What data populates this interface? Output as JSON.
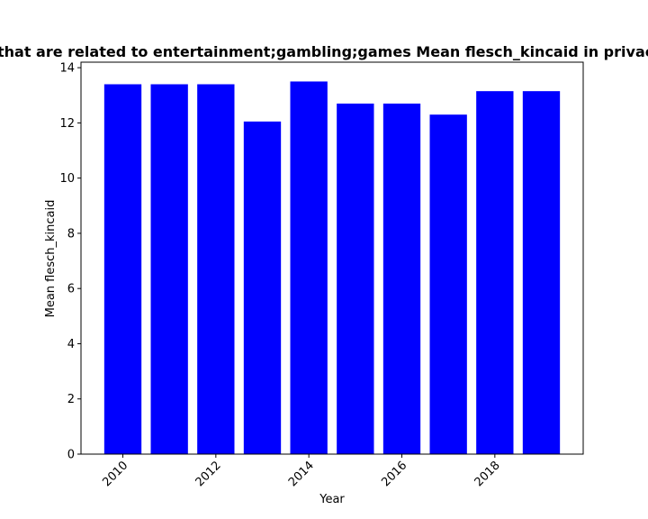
{
  "chart_data": {
    "type": "bar",
    "title": "Websites that are related to entertainment;gambling;games Mean flesch_kincaid in privacy policies",
    "xlabel": "Year",
    "ylabel": "Mean flesch_kincaid",
    "x": [
      2010,
      2011,
      2012,
      2013,
      2014,
      2015,
      2016,
      2017,
      2018,
      2019
    ],
    "values": [
      13.4,
      13.4,
      13.4,
      12.05,
      13.5,
      12.7,
      12.7,
      12.3,
      13.15,
      13.15
    ],
    "xlim": [
      2009.1,
      2019.9
    ],
    "ylim": [
      0,
      14.2
    ],
    "x_ticks": [
      "2010",
      "2012",
      "2014",
      "2016",
      "2018"
    ],
    "y_ticks": [
      "0",
      "2",
      "4",
      "6",
      "8",
      "10",
      "12",
      "14"
    ],
    "grid": false,
    "legend": "none",
    "bar_color": "#0000ff"
  }
}
